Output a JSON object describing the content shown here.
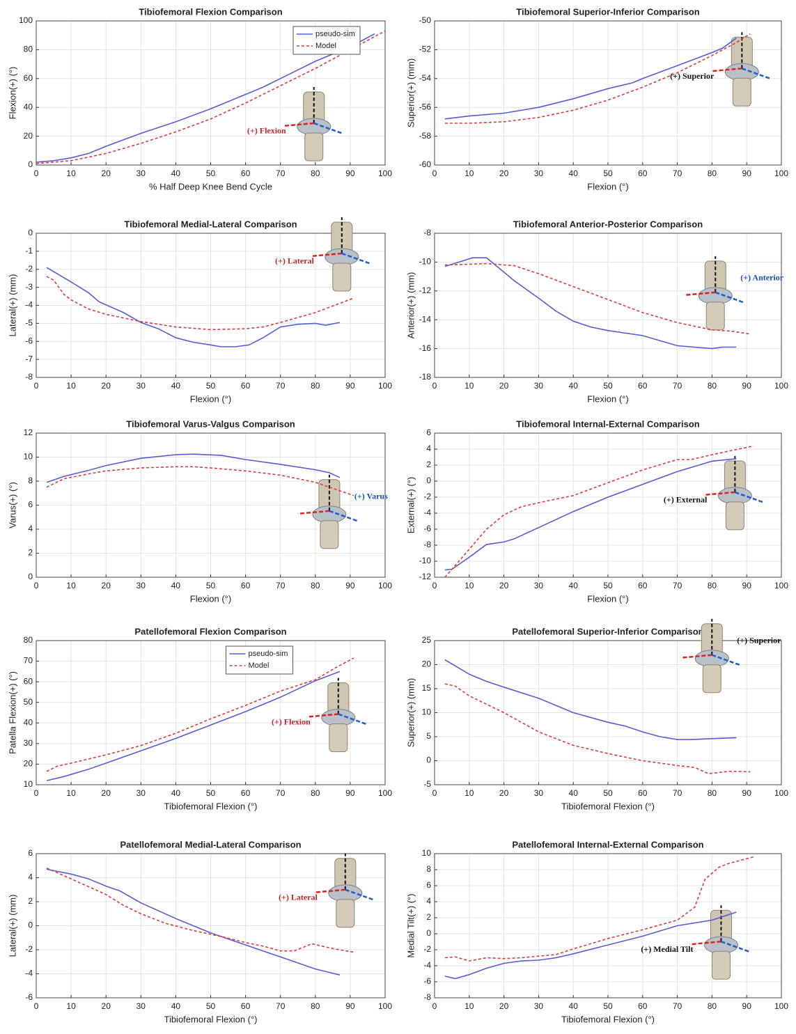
{
  "chart_data": [
    {
      "type": "line",
      "title": "Tibiofemoral Flexion Comparison",
      "xlabel": "% Half Deep Knee Bend Cycle",
      "ylabel": "Flexion(+) (°)",
      "xlim": [
        0,
        100
      ],
      "xticks": [
        0,
        10,
        20,
        30,
        40,
        50,
        60,
        70,
        80,
        90,
        100
      ],
      "ylim": [
        0,
        100
      ],
      "yticks": [
        0,
        20,
        40,
        60,
        80,
        100
      ],
      "grid": true,
      "legend": "upper right",
      "annotation": "(+) Flexion",
      "series": [
        {
          "name": "pseudo-sim",
          "color": "#5a5ad8",
          "style": "solid",
          "x": [
            0,
            5,
            10,
            15,
            20,
            30,
            40,
            50,
            60,
            65,
            70,
            80,
            90,
            97
          ],
          "values": [
            2,
            3,
            5,
            8,
            13,
            22,
            30,
            39,
            49,
            54,
            60,
            72,
            82,
            91
          ]
        },
        {
          "name": "Model",
          "color": "#e0393b",
          "style": "dashed",
          "x": [
            0,
            10,
            20,
            30,
            40,
            50,
            60,
            70,
            80,
            90,
            100
          ],
          "values": [
            1,
            3,
            8,
            15,
            23,
            32,
            43,
            55,
            67,
            80,
            93
          ]
        }
      ]
    },
    {
      "type": "line",
      "title": "Tibiofemoral Superior-Inferior Comparison",
      "xlabel": "Flexion (°)",
      "ylabel": "Superior(+) (mm)",
      "xlim": [
        0,
        100
      ],
      "xticks": [
        0,
        10,
        20,
        30,
        40,
        50,
        60,
        70,
        80,
        90,
        100
      ],
      "ylim": [
        -60,
        -50
      ],
      "yticks": [
        -60,
        -58,
        -56,
        -54,
        -52,
        -50
      ],
      "grid": true,
      "annotation": "(+) Superior",
      "series": [
        {
          "color": "#5a5ad8",
          "style": "solid",
          "x": [
            3,
            10,
            20,
            30,
            40,
            50,
            57,
            60,
            70,
            80,
            83,
            87
          ],
          "values": [
            -56.8,
            -56.6,
            -56.4,
            -56.0,
            -55.4,
            -54.7,
            -54.3,
            -54.0,
            -53.1,
            -52.2,
            -51.9,
            -51.2
          ]
        },
        {
          "color": "#e0393b",
          "style": "dashed",
          "x": [
            3,
            10,
            20,
            30,
            40,
            50,
            60,
            70,
            80,
            87,
            91
          ],
          "values": [
            -57.1,
            -57.1,
            -57.0,
            -56.7,
            -56.2,
            -55.5,
            -54.6,
            -53.6,
            -52.4,
            -51.5,
            -50.9
          ]
        }
      ]
    },
    {
      "type": "line",
      "title": "Tibiofemoral Medial-Lateral Comparison",
      "xlabel": "Flexion (°)",
      "ylabel": "Lateral(+) (mm)",
      "xlim": [
        0,
        100
      ],
      "xticks": [
        0,
        10,
        20,
        30,
        40,
        50,
        60,
        70,
        80,
        90,
        100
      ],
      "ylim": [
        -8,
        0
      ],
      "yticks": [
        -8,
        -7,
        -6,
        -5,
        -4,
        -3,
        -2,
        -1,
        0
      ],
      "grid": true,
      "annotation": "(+) Lateral",
      "series": [
        {
          "color": "#5a5ad8",
          "style": "solid",
          "x": [
            3,
            10,
            15,
            18,
            25,
            30,
            35,
            40,
            45,
            50,
            53,
            57,
            61,
            65,
            70,
            75,
            80,
            83,
            87
          ],
          "values": [
            -1.9,
            -2.7,
            -3.3,
            -3.8,
            -4.4,
            -4.95,
            -5.3,
            -5.8,
            -6.05,
            -6.2,
            -6.3,
            -6.3,
            -6.2,
            -5.8,
            -5.2,
            -5.05,
            -5.0,
            -5.1,
            -4.95
          ]
        },
        {
          "color": "#e0393b",
          "style": "dashed",
          "x": [
            3,
            5,
            8,
            10,
            15,
            20,
            30,
            40,
            50,
            60,
            65,
            70,
            80,
            91
          ],
          "values": [
            -2.4,
            -2.6,
            -3.4,
            -3.7,
            -4.2,
            -4.5,
            -4.9,
            -5.2,
            -5.35,
            -5.3,
            -5.2,
            -4.95,
            -4.4,
            -3.6
          ]
        }
      ]
    },
    {
      "type": "line",
      "title": "Tibiofemoral Anterior-Posterior Comparison",
      "xlabel": "Flexion (°)",
      "ylabel": "Anterior(+) (mm)",
      "xlim": [
        0,
        100
      ],
      "xticks": [
        0,
        10,
        20,
        30,
        40,
        50,
        60,
        70,
        80,
        90,
        100
      ],
      "ylim": [
        -18,
        -8
      ],
      "yticks": [
        -18,
        -16,
        -14,
        -12,
        -10,
        -8
      ],
      "grid": true,
      "annotation": "(+) Anterior",
      "series": [
        {
          "color": "#5a5ad8",
          "style": "solid",
          "x": [
            3,
            7,
            11,
            15,
            20,
            23,
            30,
            35,
            40,
            45,
            50,
            60,
            70,
            80,
            83,
            87
          ],
          "values": [
            -10.3,
            -10.0,
            -9.7,
            -9.7,
            -10.7,
            -11.3,
            -12.5,
            -13.4,
            -14.1,
            -14.5,
            -14.75,
            -15.1,
            -15.8,
            -16.0,
            -15.9,
            -15.9
          ]
        },
        {
          "color": "#e0393b",
          "style": "dashed",
          "x": [
            3,
            10,
            15,
            23,
            30,
            40,
            50,
            60,
            70,
            74,
            80,
            86,
            91
          ],
          "values": [
            -10.2,
            -10.15,
            -10.1,
            -10.25,
            -10.8,
            -11.7,
            -12.6,
            -13.5,
            -14.2,
            -14.4,
            -14.7,
            -14.8,
            -15.0
          ]
        }
      ]
    },
    {
      "type": "line",
      "title": "Tibiofemoral Varus-Valgus Comparison",
      "xlabel": "Flexion (°)",
      "ylabel": "Varus(+) (°)",
      "xlim": [
        0,
        100
      ],
      "xticks": [
        0,
        10,
        20,
        30,
        40,
        50,
        60,
        70,
        80,
        90,
        100
      ],
      "ylim": [
        0,
        12
      ],
      "yticks": [
        0,
        2,
        4,
        6,
        8,
        10,
        12
      ],
      "grid": true,
      "annotation": "(+) Varus",
      "series": [
        {
          "color": "#5a5ad8",
          "style": "solid",
          "x": [
            3,
            8,
            15,
            20,
            30,
            40,
            45,
            53,
            60,
            70,
            80,
            84,
            87
          ],
          "values": [
            7.9,
            8.4,
            8.9,
            9.3,
            9.9,
            10.2,
            10.25,
            10.15,
            9.8,
            9.4,
            8.95,
            8.7,
            8.3
          ]
        },
        {
          "color": "#e0393b",
          "style": "dashed",
          "x": [
            3,
            8,
            15,
            20,
            30,
            40,
            45,
            50,
            60,
            70,
            80,
            91
          ],
          "values": [
            7.5,
            8.2,
            8.6,
            8.85,
            9.1,
            9.2,
            9.2,
            9.1,
            8.85,
            8.5,
            7.9,
            6.8
          ]
        }
      ]
    },
    {
      "type": "line",
      "title": "Tibiofemoral Internal-External Comparison",
      "xlabel": "Flexion (°)",
      "ylabel": "External(+) (°)",
      "xlim": [
        0,
        100
      ],
      "xticks": [
        0,
        10,
        20,
        30,
        40,
        50,
        60,
        70,
        80,
        90,
        100
      ],
      "ylim": [
        -12,
        6
      ],
      "yticks": [
        -12,
        -10,
        -8,
        -6,
        -4,
        -2,
        0,
        2,
        4,
        6
      ],
      "grid": true,
      "annotation": "(+) External",
      "series": [
        {
          "color": "#5a5ad8",
          "style": "solid",
          "x": [
            3,
            5,
            10,
            15,
            20,
            23,
            30,
            40,
            50,
            60,
            70,
            80,
            87
          ],
          "values": [
            -11.1,
            -11.0,
            -9.5,
            -7.9,
            -7.6,
            -7.2,
            -5.8,
            -3.8,
            -2.0,
            -0.4,
            1.2,
            2.5,
            2.8
          ]
        },
        {
          "color": "#e0393b",
          "style": "dashed",
          "x": [
            3,
            6,
            10,
            15,
            20,
            25,
            30,
            40,
            50,
            60,
            70,
            74,
            80,
            92
          ],
          "values": [
            -12,
            -10.5,
            -8.5,
            -6,
            -4.2,
            -3.2,
            -2.7,
            -1.8,
            -0.2,
            1.4,
            2.7,
            2.7,
            3.3,
            4.4
          ]
        }
      ]
    },
    {
      "type": "line",
      "title": "Patellofemoral Flexion Comparison",
      "xlabel": "Tibiofemoral Flexion (°)",
      "ylabel": "Patella Flexion(+) (°)",
      "xlim": [
        0,
        100
      ],
      "xticks": [
        0,
        10,
        20,
        30,
        40,
        50,
        60,
        70,
        80,
        90,
        100
      ],
      "ylim": [
        10,
        80
      ],
      "yticks": [
        10,
        20,
        30,
        40,
        50,
        60,
        70,
        80
      ],
      "grid": true,
      "legend": "upper center",
      "annotation": "(+) Flexion",
      "series": [
        {
          "name": "pseudo-sim",
          "color": "#5a5ad8",
          "style": "solid",
          "x": [
            3,
            8,
            15,
            20,
            30,
            40,
            50,
            60,
            70,
            80,
            87
          ],
          "values": [
            12,
            14,
            17.5,
            20.5,
            26.5,
            32.5,
            39,
            45.5,
            52.5,
            60.5,
            65
          ]
        },
        {
          "name": "Model",
          "color": "#e0393b",
          "style": "dashed",
          "x": [
            3,
            6,
            10,
            20,
            30,
            40,
            50,
            60,
            70,
            80,
            86,
            91
          ],
          "values": [
            16.5,
            19,
            20.5,
            24.5,
            29,
            35,
            42,
            48.5,
            55.5,
            61,
            67,
            71.5
          ]
        }
      ]
    },
    {
      "type": "line",
      "title": "Patellofemoral Superior-Inferior Comparison",
      "xlabel": "Tibiofemoral Flexion (°)",
      "ylabel": "Superior(+) (mm)",
      "xlim": [
        0,
        100
      ],
      "xticks": [
        0,
        10,
        20,
        30,
        40,
        50,
        60,
        70,
        80,
        90,
        100
      ],
      "ylim": [
        -5,
        25
      ],
      "yticks": [
        -5,
        0,
        5,
        10,
        15,
        20,
        25
      ],
      "grid": true,
      "annotation": "(+) Superior",
      "series": [
        {
          "color": "#5a5ad8",
          "style": "solid",
          "x": [
            3,
            10,
            15,
            20,
            30,
            40,
            50,
            55,
            60,
            65,
            70,
            74,
            80,
            87
          ],
          "values": [
            21,
            18,
            16.5,
            15.3,
            13,
            10,
            8,
            7.2,
            6,
            5,
            4.4,
            4.4,
            4.6,
            4.8
          ]
        },
        {
          "color": "#e0393b",
          "style": "dashed",
          "x": [
            3,
            6,
            10,
            20,
            30,
            40,
            50,
            60,
            70,
            75,
            79,
            85,
            91
          ],
          "values": [
            16,
            15.5,
            13.5,
            10,
            6,
            3.2,
            1.5,
            0,
            -1,
            -1.4,
            -2.7,
            -2.2,
            -2.3
          ]
        }
      ]
    },
    {
      "type": "line",
      "title": "Patellofemoral Medial-Lateral Comparison",
      "xlabel": "Tibiofemoral Flexion (°)",
      "ylabel": "Lateral(+) (mm)",
      "xlim": [
        0,
        100
      ],
      "xticks": [
        0,
        10,
        20,
        30,
        40,
        50,
        60,
        70,
        80,
        90,
        100
      ],
      "ylim": [
        -6,
        6
      ],
      "yticks": [
        -6,
        -4,
        -2,
        0,
        2,
        4,
        6
      ],
      "grid": true,
      "annotation": "(+) Lateral",
      "series": [
        {
          "color": "#5a5ad8",
          "style": "solid",
          "x": [
            3,
            10,
            15,
            20,
            24,
            30,
            40,
            50,
            60,
            70,
            80,
            87
          ],
          "values": [
            4.7,
            4.3,
            3.9,
            3.3,
            2.9,
            1.9,
            0.6,
            -0.6,
            -1.6,
            -2.6,
            -3.6,
            -4.1
          ]
        },
        {
          "color": "#e0393b",
          "style": "dashed",
          "x": [
            3,
            10,
            20,
            25,
            30,
            37,
            45,
            53,
            60,
            65,
            70,
            74,
            79,
            85,
            91
          ],
          "values": [
            4.8,
            3.9,
            2.6,
            1.7,
            1.0,
            0.2,
            -0.4,
            -0.9,
            -1.4,
            -1.7,
            -2.1,
            -2.1,
            -1.5,
            -1.9,
            -2.2
          ]
        }
      ]
    },
    {
      "type": "line",
      "title": "Patellofemoral Internal-External Comparison",
      "xlabel": "Tibiofemoral Flexion (°)",
      "ylabel": "Medial Tilt(+) (°)",
      "xlim": [
        0,
        100
      ],
      "xticks": [
        0,
        10,
        20,
        30,
        40,
        50,
        60,
        70,
        80,
        90,
        100
      ],
      "ylim": [
        -8,
        10
      ],
      "yticks": [
        -8,
        -6,
        -4,
        -2,
        0,
        2,
        4,
        6,
        8,
        10
      ],
      "grid": true,
      "annotation": "(+) Medial Tilt",
      "series": [
        {
          "color": "#5a5ad8",
          "style": "solid",
          "x": [
            3,
            6,
            10,
            15,
            20,
            25,
            30,
            35,
            40,
            50,
            60,
            70,
            80,
            87
          ],
          "values": [
            -5.3,
            -5.6,
            -5.1,
            -4.3,
            -3.7,
            -3.4,
            -3.3,
            -3.0,
            -2.5,
            -1.4,
            -0.3,
            1.0,
            1.7,
            2.7
          ]
        },
        {
          "color": "#e0393b",
          "style": "dashed",
          "x": [
            3,
            6,
            10,
            15,
            20,
            25,
            30,
            35,
            40,
            50,
            60,
            70,
            75,
            78,
            82,
            85,
            92
          ],
          "values": [
            -3,
            -2.9,
            -3.4,
            -3.0,
            -3.1,
            -3.0,
            -2.8,
            -2.6,
            -1.9,
            -0.6,
            0.5,
            1.7,
            3.3,
            6.8,
            8.3,
            8.8,
            9.6
          ]
        }
      ]
    }
  ]
}
